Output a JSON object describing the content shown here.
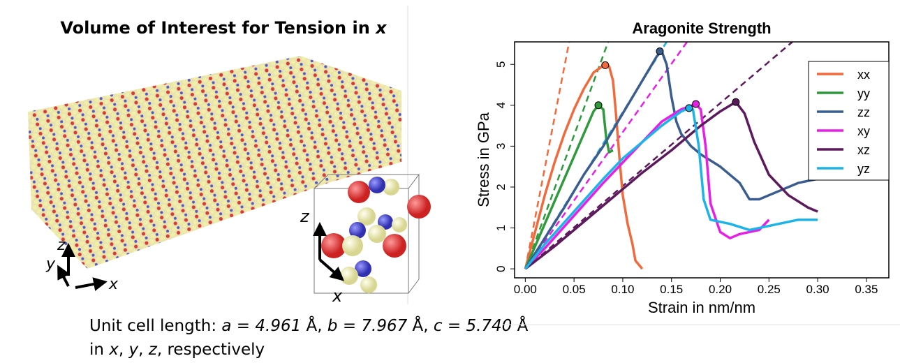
{
  "left_panel": {
    "title": [
      {
        "text": "Volume of Interest for Tension in "
      },
      {
        "text": "x",
        "italic": true
      }
    ],
    "axis_labels": [
      "z",
      "y",
      "x"
    ],
    "inset_axis_labels": [
      "z",
      "x"
    ],
    "caption": [
      [
        {
          "text": "Unit cell length: "
        },
        {
          "text": "a = 4.961",
          "italic": true
        },
        {
          "text": " Å, "
        },
        {
          "text": "b = 7.967",
          "italic": true
        },
        {
          "text": " Å, "
        },
        {
          "text": "c = 5.740",
          "italic": true
        },
        {
          "text": " Å"
        }
      ],
      [
        {
          "text": "in "
        },
        {
          "text": "x",
          "italic": true
        },
        {
          "text": ", "
        },
        {
          "text": "y",
          "italic": true
        },
        {
          "text": ", "
        },
        {
          "text": "z",
          "italic": true
        },
        {
          "text": ", respectively"
        }
      ]
    ]
  },
  "chart_data": {
    "type": "line",
    "title": "Aragonite Strength",
    "x_label": "Strain in nm/nm",
    "y_label": "Stress in GPa",
    "xlim": [
      -0.011,
      0.373
    ],
    "ylim": [
      -0.22,
      5.55
    ],
    "xticks": [
      {
        "value": 0,
        "label": "0.00"
      },
      {
        "value": 0.05,
        "label": "0.05"
      },
      {
        "value": 0.1,
        "label": "0.10"
      },
      {
        "value": 0.15,
        "label": "0.15"
      },
      {
        "value": 0.2,
        "label": "0.20"
      },
      {
        "value": 0.25,
        "label": "0.25"
      },
      {
        "value": 0.3,
        "label": "0.30"
      },
      {
        "value": 0.35,
        "label": "0.35"
      }
    ],
    "yticks": [
      0,
      1,
      2,
      3,
      4,
      5
    ],
    "legend": "top-right",
    "series": [
      {
        "name": "xx",
        "color": "#f26a3c",
        "x": [
          0,
          0.01,
          0.02,
          0.03,
          0.04,
          0.05,
          0.06,
          0.07,
          0.08,
          0.086,
          0.09,
          0.093,
          0.097,
          0.1,
          0.105,
          0.11,
          0.113,
          0.12
        ],
        "values": [
          0,
          0.9,
          1.8,
          2.6,
          3.3,
          3.9,
          4.4,
          4.8,
          4.97,
          4.95,
          4.6,
          3.8,
          2.6,
          1.8,
          1.1,
          0.6,
          0.2,
          0
        ],
        "fit": {
          "x": [
            0,
            0.045
          ],
          "values": [
            0,
            5.55
          ]
        },
        "peak": {
          "x": 0.082,
          "y": 4.98
        }
      },
      {
        "name": "yy",
        "color": "#2e9a3c",
        "x": [
          0,
          0.01,
          0.02,
          0.03,
          0.04,
          0.05,
          0.06,
          0.07,
          0.075,
          0.08,
          0.083,
          0.086,
          0.09
        ],
        "values": [
          0,
          0.55,
          1.1,
          1.65,
          2.2,
          2.75,
          3.3,
          3.85,
          4.0,
          3.9,
          3.2,
          2.85,
          2.9
        ],
        "fit": {
          "x": [
            0,
            0.085
          ],
          "values": [
            0,
            5.55
          ]
        },
        "peak": {
          "x": 0.075,
          "y": 4.0
        }
      },
      {
        "name": "zz",
        "color": "#3a5d8f",
        "x": [
          0,
          0.02,
          0.04,
          0.06,
          0.08,
          0.1,
          0.12,
          0.135,
          0.14,
          0.145,
          0.15,
          0.155,
          0.16,
          0.17,
          0.18,
          0.2,
          0.22,
          0.23,
          0.24,
          0.26,
          0.28,
          0.3,
          0.33,
          0.36,
          0.373
        ],
        "values": [
          0,
          0.75,
          1.5,
          2.3,
          3.0,
          3.8,
          4.6,
          5.2,
          5.32,
          5.0,
          4.2,
          3.6,
          3.3,
          3.0,
          2.8,
          2.5,
          2.1,
          1.7,
          1.7,
          1.9,
          2.1,
          2.2,
          2.2,
          2.25,
          2.3
        ],
        "fit": {
          "x": [
            0,
            0.145
          ],
          "values": [
            0,
            5.55
          ]
        },
        "peak": {
          "x": 0.138,
          "y": 5.32
        }
      },
      {
        "name": "xy",
        "color": "#e81ee8",
        "x": [
          0,
          0.02,
          0.05,
          0.08,
          0.1,
          0.12,
          0.14,
          0.16,
          0.175,
          0.18,
          0.185,
          0.19,
          0.2,
          0.21,
          0.22,
          0.24,
          0.25
        ],
        "values": [
          0,
          0.5,
          1.3,
          2.1,
          2.6,
          3.1,
          3.6,
          3.9,
          4.03,
          3.9,
          3.0,
          1.6,
          0.9,
          0.75,
          0.85,
          0.95,
          1.2
        ],
        "fit": {
          "x": [
            0,
            0.166
          ],
          "values": [
            0,
            5.55
          ]
        },
        "peak": {
          "x": 0.175,
          "y": 4.03
        }
      },
      {
        "name": "xz",
        "color": "#5c1a5c",
        "x": [
          0,
          0.03,
          0.06,
          0.09,
          0.12,
          0.15,
          0.18,
          0.2,
          0.216,
          0.225,
          0.235,
          0.25,
          0.27,
          0.29,
          0.3
        ],
        "values": [
          0,
          0.55,
          1.15,
          1.75,
          2.35,
          2.9,
          3.5,
          3.85,
          4.08,
          3.8,
          3.1,
          2.3,
          1.8,
          1.5,
          1.4
        ],
        "fit": {
          "x": [
            0,
            0.274
          ],
          "values": [
            0,
            5.55
          ]
        },
        "peak": {
          "x": 0.216,
          "y": 4.08
        }
      },
      {
        "name": "yz",
        "color": "#1ab4e8",
        "x": [
          0,
          0.02,
          0.05,
          0.08,
          0.1,
          0.12,
          0.14,
          0.16,
          0.168,
          0.172,
          0.178,
          0.183,
          0.19,
          0.21,
          0.23,
          0.26,
          0.28,
          0.3
        ],
        "values": [
          0,
          0.6,
          1.4,
          2.2,
          2.7,
          3.1,
          3.5,
          3.85,
          3.93,
          3.9,
          3.0,
          1.7,
          1.2,
          1.1,
          0.95,
          1.1,
          1.2,
          1.2
        ],
        "fit": {
          "x": [
            0,
            0.145
          ],
          "values": [
            0,
            5.55
          ]
        },
        "peak": {
          "x": 0.168,
          "y": 3.93
        }
      }
    ]
  }
}
